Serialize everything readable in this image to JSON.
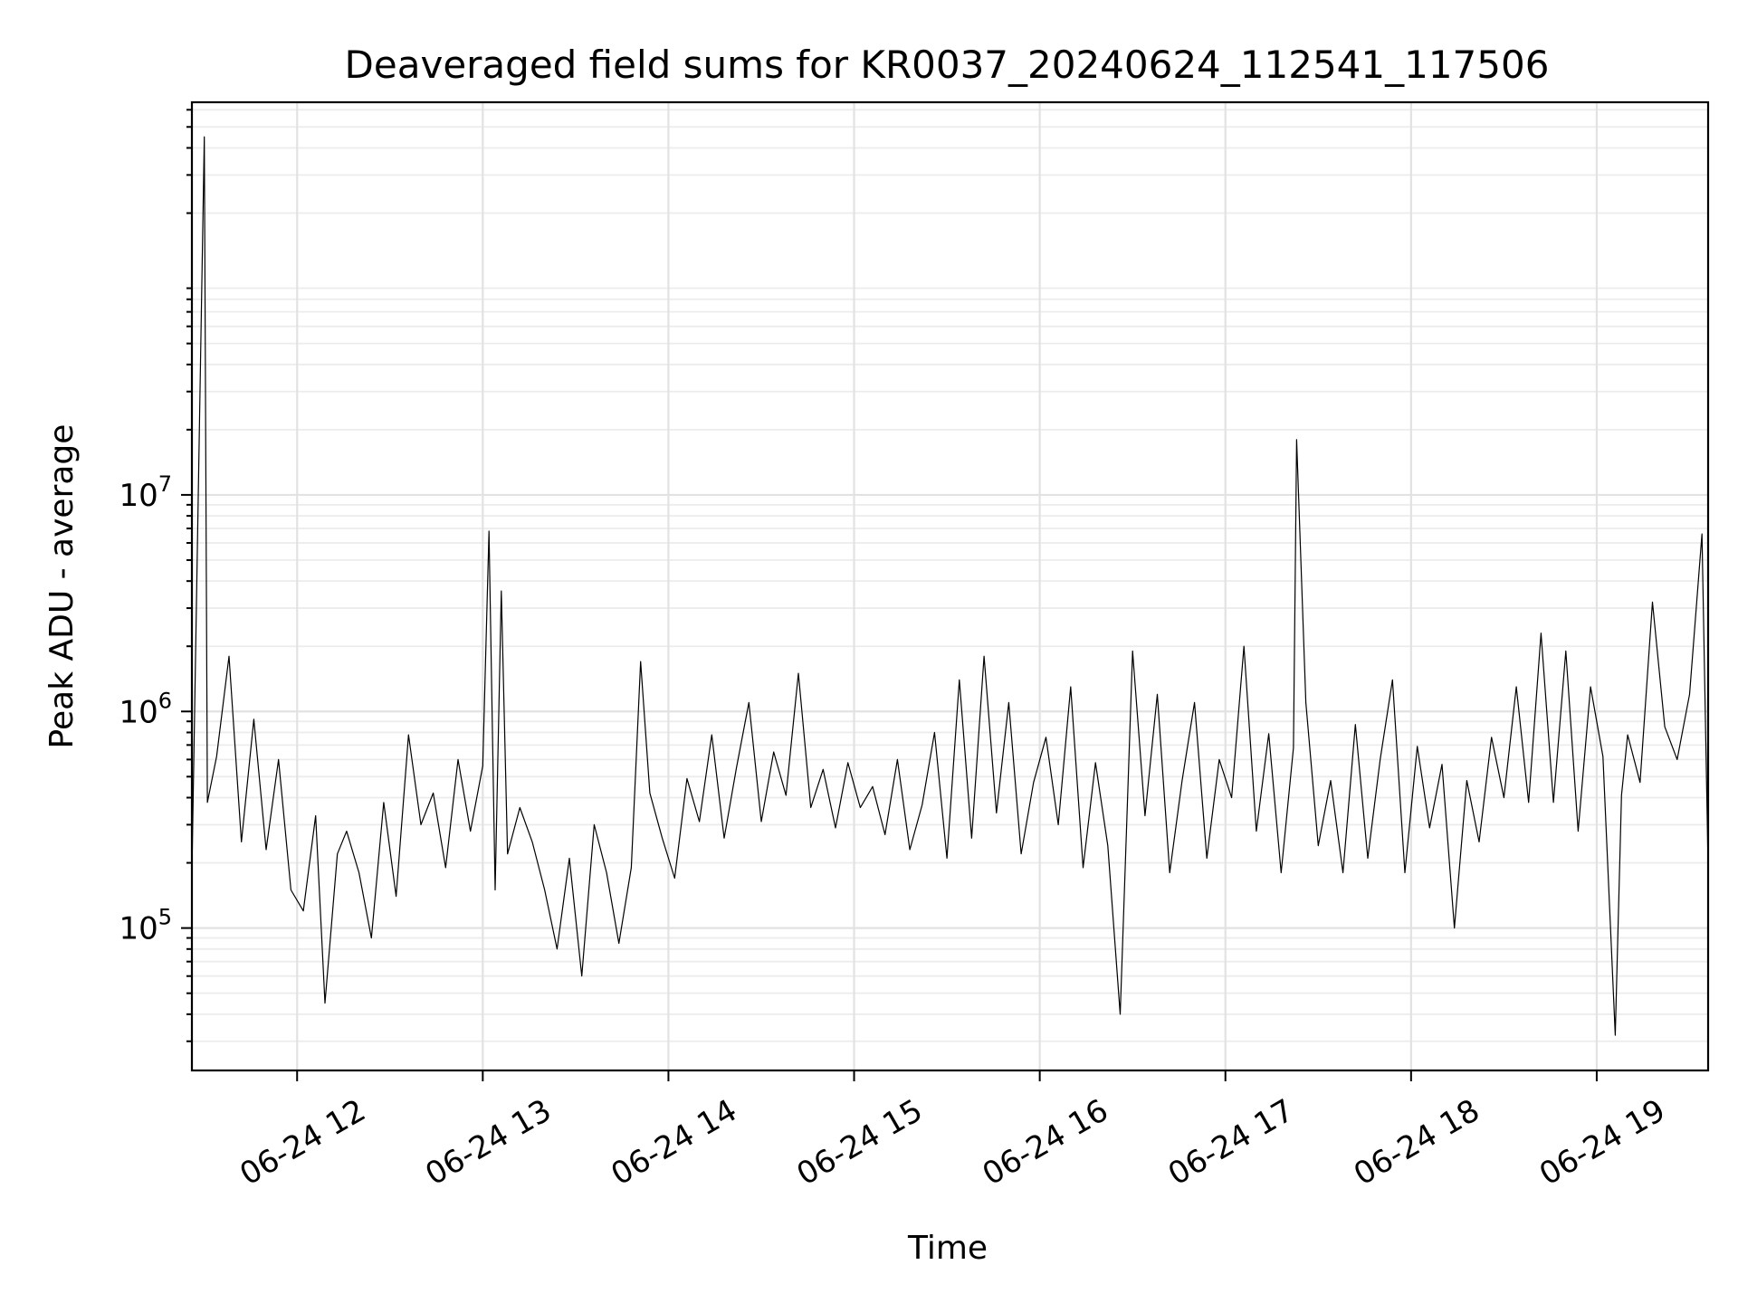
{
  "chart_data": {
    "type": "line",
    "title": "Deaveraged field sums for KR0037_20240624_112541_117506",
    "xlabel": "Time",
    "ylabel": "Peak ADU - average",
    "yscale": "log",
    "ylim": [
      22000,
      650000000
    ],
    "xlim": [
      "2024-06-24 11:26",
      "2024-06-24 19:36"
    ],
    "grid": true,
    "x_ticks": [
      {
        "t": "2024-06-24 12:00",
        "label": "06-24 12"
      },
      {
        "t": "2024-06-24 13:00",
        "label": "06-24 13"
      },
      {
        "t": "2024-06-24 14:00",
        "label": "06-24 14"
      },
      {
        "t": "2024-06-24 15:00",
        "label": "06-24 15"
      },
      {
        "t": "2024-06-24 16:00",
        "label": "06-24 16"
      },
      {
        "t": "2024-06-24 17:00",
        "label": "06-24 17"
      },
      {
        "t": "2024-06-24 18:00",
        "label": "06-24 18"
      },
      {
        "t": "2024-06-24 19:00",
        "label": "06-24 19"
      }
    ],
    "y_ticks": [
      {
        "value": 100000,
        "base": "10",
        "exp": "5"
      },
      {
        "value": 1000000,
        "base": "10",
        "exp": "6"
      },
      {
        "value": 10000000,
        "base": "10",
        "exp": "7"
      }
    ],
    "series": [
      {
        "color": "#000000",
        "x": [
          "2024-06-24 11:26",
          "2024-06-24 11:30",
          "2024-06-24 11:31",
          "2024-06-24 11:34",
          "2024-06-24 11:38",
          "2024-06-24 11:42",
          "2024-06-24 11:46",
          "2024-06-24 11:50",
          "2024-06-24 11:54",
          "2024-06-24 11:58",
          "2024-06-24 12:02",
          "2024-06-24 12:06",
          "2024-06-24 12:09",
          "2024-06-24 12:13",
          "2024-06-24 12:16",
          "2024-06-24 12:20",
          "2024-06-24 12:24",
          "2024-06-24 12:28",
          "2024-06-24 12:32",
          "2024-06-24 12:36",
          "2024-06-24 12:40",
          "2024-06-24 12:44",
          "2024-06-24 12:48",
          "2024-06-24 12:52",
          "2024-06-24 12:56",
          "2024-06-24 13:00",
          "2024-06-24 13:02",
          "2024-06-24 13:04",
          "2024-06-24 13:06",
          "2024-06-24 13:08",
          "2024-06-24 13:12",
          "2024-06-24 13:16",
          "2024-06-24 13:20",
          "2024-06-24 13:24",
          "2024-06-24 13:28",
          "2024-06-24 13:32",
          "2024-06-24 13:36",
          "2024-06-24 13:40",
          "2024-06-24 13:44",
          "2024-06-24 13:48",
          "2024-06-24 13:51",
          "2024-06-24 13:54",
          "2024-06-24 13:58",
          "2024-06-24 14:02",
          "2024-06-24 14:06",
          "2024-06-24 14:10",
          "2024-06-24 14:14",
          "2024-06-24 14:18",
          "2024-06-24 14:22",
          "2024-06-24 14:26",
          "2024-06-24 14:30",
          "2024-06-24 14:34",
          "2024-06-24 14:38",
          "2024-06-24 14:42",
          "2024-06-24 14:46",
          "2024-06-24 14:50",
          "2024-06-24 14:54",
          "2024-06-24 14:58",
          "2024-06-24 15:02",
          "2024-06-24 15:06",
          "2024-06-24 15:10",
          "2024-06-24 15:14",
          "2024-06-24 15:18",
          "2024-06-24 15:22",
          "2024-06-24 15:26",
          "2024-06-24 15:30",
          "2024-06-24 15:34",
          "2024-06-24 15:38",
          "2024-06-24 15:42",
          "2024-06-24 15:46",
          "2024-06-24 15:50",
          "2024-06-24 15:54",
          "2024-06-24 15:58",
          "2024-06-24 16:02",
          "2024-06-24 16:06",
          "2024-06-24 16:10",
          "2024-06-24 16:14",
          "2024-06-24 16:18",
          "2024-06-24 16:22",
          "2024-06-24 16:26",
          "2024-06-24 16:30",
          "2024-06-24 16:34",
          "2024-06-24 16:38",
          "2024-06-24 16:42",
          "2024-06-24 16:46",
          "2024-06-24 16:50",
          "2024-06-24 16:54",
          "2024-06-24 16:58",
          "2024-06-24 17:02",
          "2024-06-24 17:06",
          "2024-06-24 17:10",
          "2024-06-24 17:14",
          "2024-06-24 17:18",
          "2024-06-24 17:22",
          "2024-06-24 17:23",
          "2024-06-24 17:26",
          "2024-06-24 17:30",
          "2024-06-24 17:34",
          "2024-06-24 17:38",
          "2024-06-24 17:42",
          "2024-06-24 17:46",
          "2024-06-24 17:50",
          "2024-06-24 17:54",
          "2024-06-24 17:58",
          "2024-06-24 18:02",
          "2024-06-24 18:06",
          "2024-06-24 18:10",
          "2024-06-24 18:14",
          "2024-06-24 18:18",
          "2024-06-24 18:22",
          "2024-06-24 18:26",
          "2024-06-24 18:30",
          "2024-06-24 18:34",
          "2024-06-24 18:38",
          "2024-06-24 18:42",
          "2024-06-24 18:46",
          "2024-06-24 18:50",
          "2024-06-24 18:54",
          "2024-06-24 18:58",
          "2024-06-24 19:02",
          "2024-06-24 19:06",
          "2024-06-24 19:08",
          "2024-06-24 19:10",
          "2024-06-24 19:14",
          "2024-06-24 19:18",
          "2024-06-24 19:22",
          "2024-06-24 19:26",
          "2024-06-24 19:30",
          "2024-06-24 19:34",
          "2024-06-24 19:36"
        ],
        "y": [
          180000,
          450000000,
          380000,
          620000,
          1800000,
          250000,
          920000,
          230000,
          600000,
          150000,
          120000,
          330000,
          45000,
          220000,
          280000,
          180000,
          90000,
          380000,
          140000,
          780000,
          300000,
          420000,
          190000,
          600000,
          280000,
          560000,
          6800000,
          150000,
          3600000,
          220000,
          360000,
          250000,
          150000,
          80000,
          210000,
          60000,
          300000,
          180000,
          85000,
          190000,
          1700000,
          420000,
          260000,
          170000,
          490000,
          310000,
          780000,
          260000,
          550000,
          1100000,
          310000,
          650000,
          410000,
          1500000,
          360000,
          540000,
          290000,
          580000,
          360000,
          450000,
          270000,
          600000,
          230000,
          370000,
          800000,
          210000,
          1400000,
          260000,
          1800000,
          340000,
          1100000,
          220000,
          470000,
          760000,
          300000,
          1300000,
          190000,
          580000,
          240000,
          40000,
          1900000,
          330000,
          1200000,
          180000,
          480000,
          1100000,
          210000,
          600000,
          400000,
          2000000,
          280000,
          790000,
          180000,
          680000,
          18000000,
          1100000,
          240000,
          480000,
          180000,
          870000,
          210000,
          600000,
          1400000,
          180000,
          690000,
          290000,
          570000,
          100000,
          480000,
          250000,
          760000,
          400000,
          1300000,
          380000,
          2300000,
          380000,
          1900000,
          280000,
          1300000,
          620000,
          32000,
          410000,
          780000,
          470000,
          3200000,
          850000,
          600000,
          1200000,
          6600000,
          190000
        ]
      }
    ]
  }
}
